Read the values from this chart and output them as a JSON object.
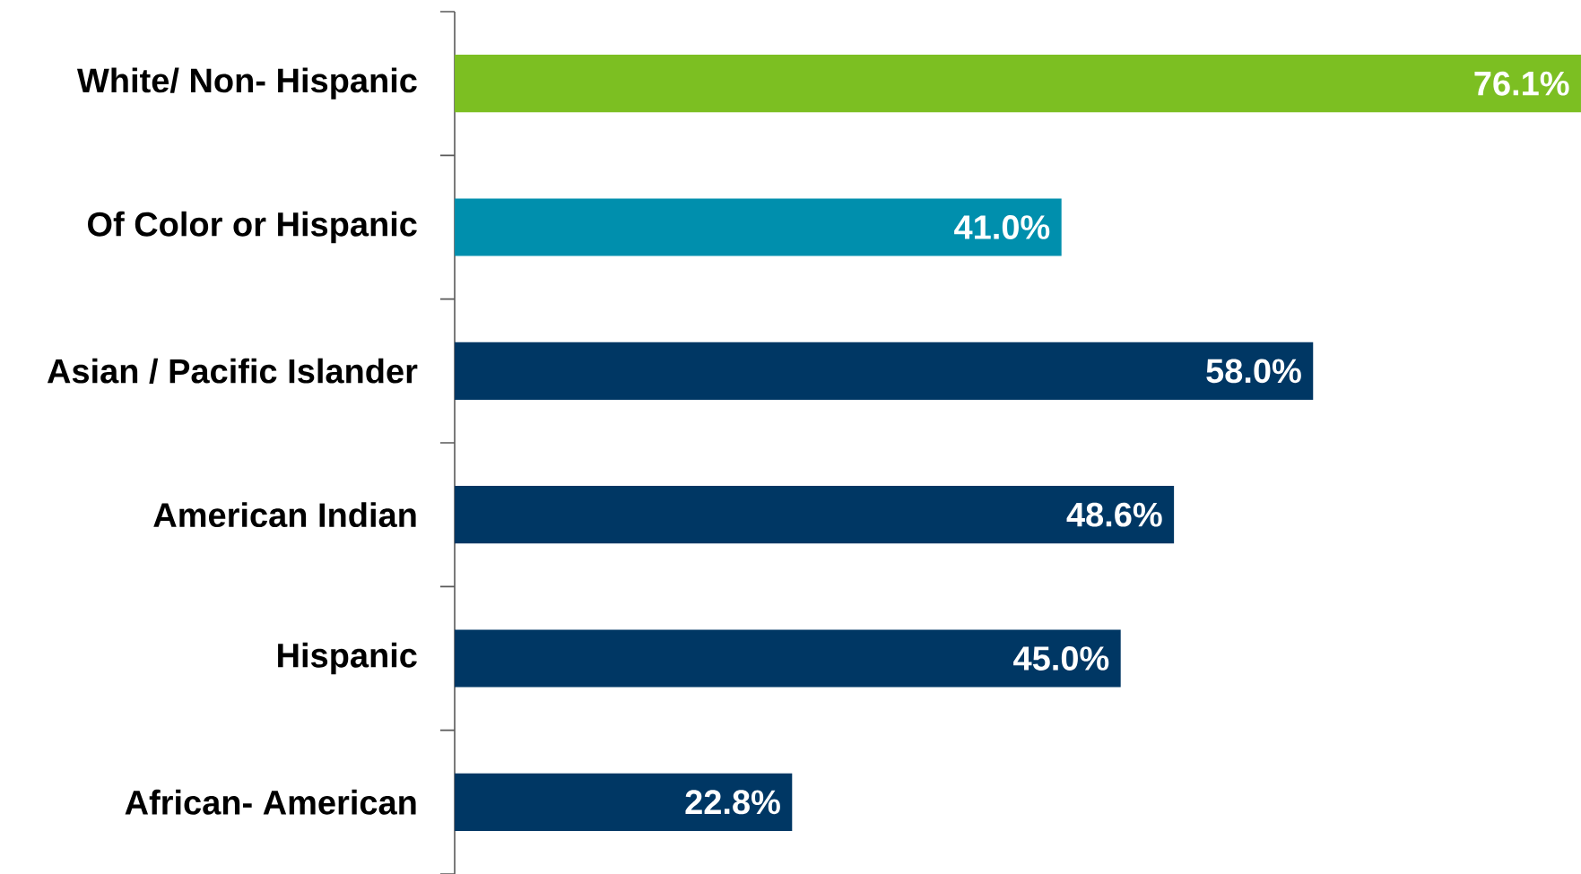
{
  "chart_data": {
    "type": "bar",
    "orientation": "horizontal",
    "categories": [
      "White/ Non- Hispanic",
      "Of Color or Hispanic",
      "Asian / Pacific Islander",
      "American Indian",
      "Hispanic",
      "African- American"
    ],
    "values": [
      76.1,
      41.0,
      58.0,
      48.6,
      45.0,
      22.8
    ],
    "colors": [
      "#7cbf22",
      "#008fad",
      "#003764",
      "#003764",
      "#003764",
      "#003764"
    ],
    "value_labels": [
      "76.1%",
      "41.0%",
      "58.0%",
      "48.6%",
      "45.0%",
      "22.8%"
    ]
  }
}
